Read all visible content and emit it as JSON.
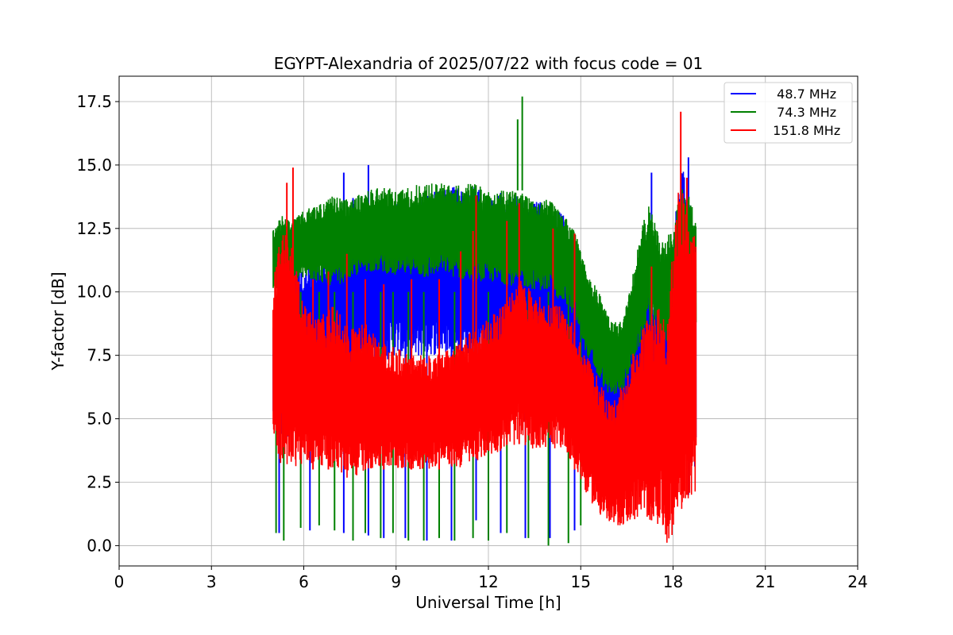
{
  "chart_data": {
    "type": "line",
    "title": "EGYPT-Alexandria of 2025/07/22 with focus code = 01",
    "xlabel": "Universal Time [h]",
    "ylabel": "Y-factor [dB]",
    "xlim": [
      0,
      24
    ],
    "ylim": [
      -0.8,
      18.5
    ],
    "xticks": [
      0,
      3,
      6,
      9,
      12,
      15,
      18,
      21,
      24
    ],
    "xtick_labels": [
      "0",
      "3",
      "6",
      "9",
      "12",
      "15",
      "18",
      "21",
      "24"
    ],
    "yticks": [
      0.0,
      2.5,
      5.0,
      7.5,
      10.0,
      12.5,
      15.0,
      17.5
    ],
    "ytick_labels": [
      "0.0",
      "2.5",
      "5.0",
      "7.5",
      "10.0",
      "12.5",
      "15.0",
      "17.5"
    ],
    "grid": true,
    "legend_position": "top-right",
    "series": [
      {
        "name": "  48.7 MHz",
        "color": "#0000ff",
        "envelope": {
          "x": [
            5.0,
            5.3,
            5.6,
            6.0,
            6.5,
            7.0,
            7.5,
            8.0,
            8.5,
            9.0,
            9.5,
            10.0,
            10.5,
            11.0,
            11.5,
            12.0,
            12.5,
            13.0,
            13.5,
            14.0,
            14.5,
            14.8,
            15.2,
            15.6,
            16.0,
            16.4,
            16.8,
            17.2,
            17.6,
            18.0,
            18.3,
            18.6,
            18.75
          ],
          "upper": [
            9.3,
            10.8,
            12.0,
            11.0,
            11.5,
            12.0,
            12.5,
            13.5,
            13.8,
            13.6,
            13.8,
            13.9,
            14.0,
            14.2,
            14.2,
            13.8,
            13.8,
            13.9,
            13.6,
            13.5,
            13.0,
            11.0,
            9.0,
            8.2,
            7.2,
            7.8,
            9.5,
            10.5,
            9.0,
            12.5,
            15.0,
            13.0,
            12.0
          ],
          "lower": [
            5.0,
            4.0,
            4.5,
            5.0,
            5.5,
            6.0,
            6.5,
            7.0,
            7.2,
            7.5,
            7.3,
            7.5,
            7.5,
            7.6,
            7.2,
            6.8,
            7.0,
            7.5,
            7.5,
            7.5,
            7.0,
            6.0,
            5.0,
            4.0,
            3.8,
            4.2,
            5.0,
            5.5,
            5.0,
            4.0,
            3.5,
            3.0,
            3.0
          ]
        },
        "spikes": [
          [
            5.2,
            9.5,
            0.5
          ],
          [
            6.2,
            10.5,
            0.6
          ],
          [
            7.3,
            14.7,
            0.5
          ],
          [
            7.6,
            13.7,
            0.5
          ],
          [
            8.1,
            15.0,
            0.4
          ],
          [
            8.6,
            12.0,
            0.3
          ],
          [
            9.3,
            11.0,
            0.3
          ],
          [
            10.0,
            10.5,
            0.2
          ],
          [
            10.8,
            14.0,
            0.2
          ],
          [
            11.6,
            10.5,
            1.0
          ],
          [
            12.4,
            13.9,
            0.5
          ],
          [
            13.2,
            11.0,
            0.3
          ],
          [
            14.0,
            10.5,
            0.3
          ],
          [
            14.8,
            11.5,
            0.6
          ],
          [
            17.3,
            14.7,
            5.0
          ],
          [
            17.8,
            10.7,
            1.0
          ],
          [
            18.5,
            15.3,
            2.0
          ]
        ]
      },
      {
        "name": "  74.3 MHz",
        "color": "#008000",
        "envelope": {
          "x": [
            5.0,
            5.3,
            5.6,
            6.0,
            6.5,
            7.0,
            7.5,
            8.0,
            8.5,
            9.0,
            9.5,
            10.0,
            10.5,
            11.0,
            11.5,
            12.0,
            12.5,
            13.0,
            13.5,
            14.0,
            14.5,
            14.8,
            15.2,
            15.6,
            16.0,
            16.4,
            16.8,
            17.2,
            17.6,
            18.0,
            18.3,
            18.6,
            18.75
          ],
          "upper": [
            12.5,
            13.0,
            12.8,
            13.2,
            13.5,
            13.8,
            13.6,
            14.0,
            14.2,
            14.0,
            14.2,
            14.3,
            14.3,
            14.2,
            14.3,
            14.0,
            14.0,
            14.0,
            13.8,
            13.6,
            13.0,
            12.5,
            10.8,
            10.0,
            8.8,
            9.0,
            11.5,
            13.6,
            12.0,
            12.5,
            14.5,
            13.5,
            12.8
          ],
          "lower": [
            10.0,
            10.2,
            10.4,
            10.5,
            10.4,
            10.2,
            10.5,
            10.8,
            10.8,
            10.6,
            10.7,
            10.5,
            10.8,
            10.5,
            10.4,
            10.4,
            10.3,
            10.2,
            10.1,
            10.0,
            9.5,
            9.0,
            7.5,
            6.5,
            5.8,
            6.2,
            7.5,
            8.8,
            8.0,
            8.0,
            8.5,
            8.0,
            8.0
          ]
        },
        "spikes": [
          [
            5.1,
            0.5,
            10.0
          ],
          [
            5.35,
            0.2,
            10.0
          ],
          [
            5.9,
            0.7,
            10.0
          ],
          [
            6.5,
            0.8,
            10.0
          ],
          [
            7.0,
            0.6,
            10.0
          ],
          [
            7.6,
            0.2,
            10.0
          ],
          [
            8.0,
            0.5,
            10.0
          ],
          [
            8.5,
            0.3,
            10.0
          ],
          [
            8.9,
            0.5,
            10.0
          ],
          [
            9.4,
            0.2,
            10.0
          ],
          [
            9.9,
            0.2,
            10.0
          ],
          [
            10.4,
            0.3,
            10.0
          ],
          [
            10.9,
            0.2,
            10.0
          ],
          [
            11.5,
            0.3,
            10.0
          ],
          [
            12.0,
            0.2,
            10.0
          ],
          [
            12.6,
            0.5,
            10.0
          ],
          [
            12.95,
            16.8,
            14.0
          ],
          [
            13.1,
            17.7,
            14.0
          ],
          [
            13.3,
            0.3,
            10.0
          ],
          [
            13.95,
            0.0,
            10.0
          ],
          [
            14.6,
            0.1,
            10.0
          ],
          [
            15.0,
            0.8,
            9.0
          ]
        ]
      },
      {
        "name": " 151.8 MHz",
        "color": "#ff0000",
        "envelope": {
          "x": [
            5.0,
            5.3,
            5.6,
            6.0,
            6.5,
            7.0,
            7.5,
            8.0,
            8.5,
            9.0,
            9.5,
            10.0,
            10.5,
            11.0,
            11.5,
            12.0,
            12.5,
            13.0,
            13.5,
            14.0,
            14.5,
            14.8,
            15.2,
            15.6,
            16.0,
            16.4,
            16.8,
            17.2,
            17.6,
            17.8,
            18.0,
            18.2,
            18.4,
            18.6,
            18.75
          ],
          "upper": [
            10.5,
            12.5,
            12.0,
            9.5,
            9.0,
            9.5,
            8.5,
            8.8,
            8.0,
            7.8,
            7.5,
            7.5,
            7.6,
            8.0,
            8.5,
            9.0,
            9.5,
            10.5,
            10.0,
            9.5,
            9.5,
            8.5,
            7.5,
            6.5,
            5.5,
            6.5,
            8.0,
            9.0,
            9.5,
            9.0,
            12.0,
            14.5,
            13.5,
            12.0,
            12.5
          ],
          "lower": [
            4.0,
            3.0,
            3.2,
            3.0,
            3.2,
            3.0,
            2.5,
            3.0,
            3.0,
            3.0,
            3.0,
            3.0,
            3.2,
            3.0,
            3.3,
            3.5,
            3.8,
            4.0,
            3.8,
            3.8,
            3.8,
            3.0,
            2.0,
            1.2,
            0.7,
            0.8,
            1.0,
            1.0,
            0.8,
            0.0,
            0.5,
            1.0,
            1.5,
            2.0,
            2.0
          ]
        },
        "spikes": [
          [
            5.45,
            14.3,
            4.0
          ],
          [
            5.65,
            14.9,
            3.5
          ],
          [
            6.3,
            10.5,
            3.0
          ],
          [
            6.8,
            10.8,
            3.0
          ],
          [
            7.4,
            11.5,
            3.0
          ],
          [
            8.0,
            10.5,
            3.0
          ],
          [
            8.6,
            10.3,
            3.0
          ],
          [
            9.5,
            10.5,
            3.0
          ],
          [
            10.4,
            10.5,
            3.0
          ],
          [
            11.1,
            11.6,
            3.5
          ],
          [
            11.5,
            12.4,
            3.5
          ],
          [
            11.6,
            13.8,
            3.5
          ],
          [
            12.6,
            12.8,
            4.0
          ],
          [
            13.0,
            13.5,
            4.0
          ],
          [
            14.1,
            12.5,
            4.0
          ],
          [
            14.8,
            12.3,
            3.0
          ],
          [
            17.3,
            11.0,
            1.0
          ],
          [
            18.25,
            17.1,
            2.0
          ],
          [
            18.45,
            14.5,
            2.0
          ]
        ]
      }
    ]
  }
}
